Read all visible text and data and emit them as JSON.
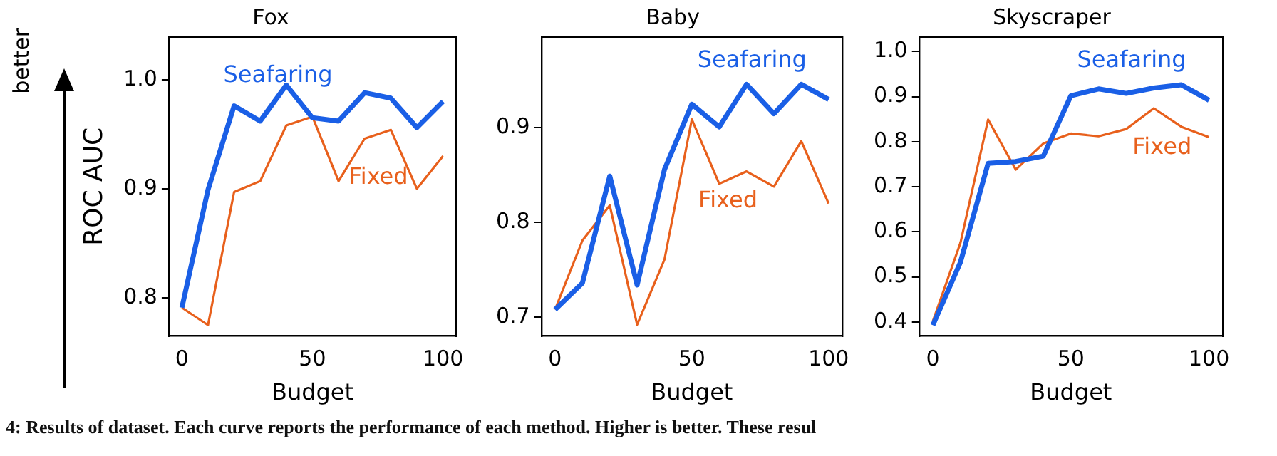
{
  "chart_data": [
    {
      "type": "line",
      "title": "Fox",
      "xlabel": "Budget",
      "ylabel": "ROC AUC",
      "annotations": [
        "better",
        "4: Results of dataset. Each curve reports the performance of each method. Higher is better. These resul"
      ],
      "x": [
        0,
        10,
        20,
        30,
        40,
        50,
        60,
        70,
        80,
        90,
        100
      ],
      "xlim": [
        -5,
        105
      ],
      "xticks": [
        0,
        50,
        100
      ],
      "ylim": [
        0.765,
        1.039
      ],
      "yticks": [
        {
          "value": 0.8,
          "label": "0.8"
        },
        {
          "value": 0.9,
          "label": "0.9"
        },
        {
          "value": 1.0,
          "label": "1.0"
        }
      ],
      "grid": false,
      "legend": false,
      "series": [
        {
          "name": "Seafaring",
          "color": "#1a5fe6",
          "values": [
            0.791,
            0.899,
            0.976,
            0.962,
            0.995,
            0.965,
            0.962,
            0.988,
            0.983,
            0.956,
            0.98
          ]
        },
        {
          "name": "Fixed",
          "color": "#e8601c",
          "values": [
            0.791,
            0.775,
            0.897,
            0.907,
            0.958,
            0.966,
            0.907,
            0.946,
            0.954,
            0.9,
            0.93
          ]
        }
      ]
    },
    {
      "type": "line",
      "title": "Baby",
      "xlabel": "Budget",
      "x": [
        0,
        10,
        20,
        30,
        40,
        50,
        60,
        70,
        80,
        90,
        100
      ],
      "xlim": [
        -5,
        105
      ],
      "xticks": [
        0,
        50,
        100
      ],
      "ylim": [
        0.68,
        0.996
      ],
      "yticks": [
        {
          "value": 0.7,
          "label": "0.7"
        },
        {
          "value": 0.8,
          "label": "0.8"
        },
        {
          "value": 0.9,
          "label": "0.9"
        }
      ],
      "grid": false,
      "legend": false,
      "series": [
        {
          "name": "Seafaring",
          "color": "#1a5fe6",
          "values": [
            0.708,
            0.736,
            0.849,
            0.734,
            0.856,
            0.925,
            0.901,
            0.946,
            0.915,
            0.946,
            0.93
          ]
        },
        {
          "name": "Fixed",
          "color": "#e8601c",
          "values": [
            0.708,
            0.781,
            0.818,
            0.692,
            0.761,
            0.909,
            0.841,
            0.854,
            0.838,
            0.886,
            0.82
          ]
        }
      ]
    },
    {
      "type": "line",
      "title": "Skyscraper",
      "xlabel": "Budget",
      "x": [
        0,
        10,
        20,
        30,
        40,
        50,
        60,
        70,
        80,
        90,
        100
      ],
      "xlim": [
        -5,
        105
      ],
      "xticks": [
        0,
        50,
        100
      ],
      "ylim": [
        0.369,
        1.032
      ],
      "yticks": [
        {
          "value": 0.4,
          "label": "0.4"
        },
        {
          "value": 0.5,
          "label": "0.5"
        },
        {
          "value": 0.6,
          "label": "0.6"
        },
        {
          "value": 0.7,
          "label": "0.7"
        },
        {
          "value": 0.8,
          "label": "0.8"
        },
        {
          "value": 0.9,
          "label": "0.9"
        },
        {
          "value": 1.0,
          "label": "1.0"
        }
      ],
      "grid": false,
      "legend": false,
      "series": [
        {
          "name": "Seafaring",
          "color": "#1a5fe6",
          "values": [
            0.393,
            0.533,
            0.752,
            0.756,
            0.768,
            0.902,
            0.917,
            0.907,
            0.919,
            0.926,
            0.892
          ]
        },
        {
          "name": "Fixed",
          "color": "#e8601c",
          "values": [
            0.402,
            0.576,
            0.849,
            0.738,
            0.796,
            0.818,
            0.812,
            0.828,
            0.874,
            0.833,
            0.81
          ]
        }
      ]
    }
  ]
}
